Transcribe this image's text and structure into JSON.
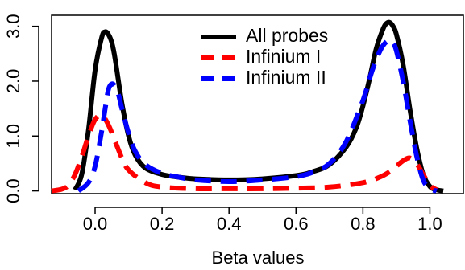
{
  "chart_data": {
    "type": "line",
    "xlabel": "Beta values",
    "ylabel": "",
    "xlim": [
      -0.13,
      1.1
    ],
    "ylim": [
      -0.05,
      3.2
    ],
    "x_ticks": [
      {
        "value": 0.0,
        "label": "0.0"
      },
      {
        "value": 0.2,
        "label": "0.2"
      },
      {
        "value": 0.4,
        "label": "0.4"
      },
      {
        "value": 0.6,
        "label": "0.6"
      },
      {
        "value": 0.8,
        "label": "0.8"
      },
      {
        "value": 1.0,
        "label": "1.0"
      }
    ],
    "y_ticks": [
      {
        "value": 0.0,
        "label": "0.0"
      },
      {
        "value": 1.0,
        "label": "1.0"
      },
      {
        "value": 2.0,
        "label": "2.0"
      },
      {
        "value": 3.0,
        "label": "3.0"
      }
    ],
    "grid": false,
    "legend_position": "top-center",
    "series": [
      {
        "name": "All probes",
        "color": "#000000",
        "dash": "solid",
        "x": [
          -0.06,
          -0.04,
          -0.02,
          0.0,
          0.02,
          0.03,
          0.04,
          0.05,
          0.06,
          0.08,
          0.1,
          0.12,
          0.15,
          0.2,
          0.25,
          0.3,
          0.4,
          0.5,
          0.6,
          0.65,
          0.7,
          0.75,
          0.78,
          0.8,
          0.82,
          0.84,
          0.86,
          0.87,
          0.88,
          0.89,
          0.9,
          0.92,
          0.94,
          0.96,
          0.98,
          1.0,
          1.02,
          1.04
        ],
        "y": [
          0.02,
          0.3,
          1.1,
          2.2,
          2.8,
          2.9,
          2.85,
          2.7,
          2.4,
          1.6,
          1.0,
          0.65,
          0.42,
          0.3,
          0.25,
          0.22,
          0.2,
          0.22,
          0.28,
          0.35,
          0.48,
          0.8,
          1.15,
          1.55,
          2.05,
          2.6,
          2.95,
          3.05,
          3.07,
          3.0,
          2.85,
          2.3,
          1.5,
          0.8,
          0.3,
          0.08,
          0.02,
          0.0
        ]
      },
      {
        "name": "Infinium I",
        "color": "#ff0000",
        "dash": "dashed",
        "x": [
          -0.13,
          -0.1,
          -0.08,
          -0.06,
          -0.04,
          -0.02,
          0.0,
          0.02,
          0.04,
          0.06,
          0.08,
          0.1,
          0.15,
          0.2,
          0.3,
          0.4,
          0.5,
          0.6,
          0.7,
          0.8,
          0.85,
          0.88,
          0.9,
          0.92,
          0.94,
          0.96,
          0.98,
          1.0,
          1.02
        ],
        "y": [
          0.0,
          0.03,
          0.1,
          0.3,
          0.62,
          1.0,
          1.3,
          1.38,
          1.2,
          0.9,
          0.6,
          0.38,
          0.15,
          0.07,
          0.04,
          0.04,
          0.04,
          0.05,
          0.07,
          0.15,
          0.25,
          0.35,
          0.45,
          0.55,
          0.6,
          0.5,
          0.3,
          0.1,
          0.02
        ]
      },
      {
        "name": "Infinium II",
        "color": "#0000ff",
        "dash": "dashed",
        "x": [
          -0.05,
          -0.02,
          0.0,
          0.02,
          0.03,
          0.04,
          0.05,
          0.06,
          0.07,
          0.08,
          0.1,
          0.12,
          0.15,
          0.2,
          0.25,
          0.3,
          0.4,
          0.5,
          0.6,
          0.65,
          0.7,
          0.75,
          0.8,
          0.82,
          0.84,
          0.86,
          0.88,
          0.89,
          0.9,
          0.92,
          0.94,
          0.96,
          0.98,
          1.0,
          1.02
        ],
        "y": [
          0.0,
          0.15,
          0.45,
          1.1,
          1.5,
          1.85,
          1.95,
          1.9,
          1.75,
          1.5,
          1.05,
          0.72,
          0.48,
          0.32,
          0.25,
          0.2,
          0.17,
          0.2,
          0.26,
          0.34,
          0.5,
          0.9,
          1.65,
          2.05,
          2.4,
          2.65,
          2.75,
          2.7,
          2.55,
          2.0,
          1.3,
          0.65,
          0.2,
          0.04,
          0.0
        ]
      }
    ]
  }
}
